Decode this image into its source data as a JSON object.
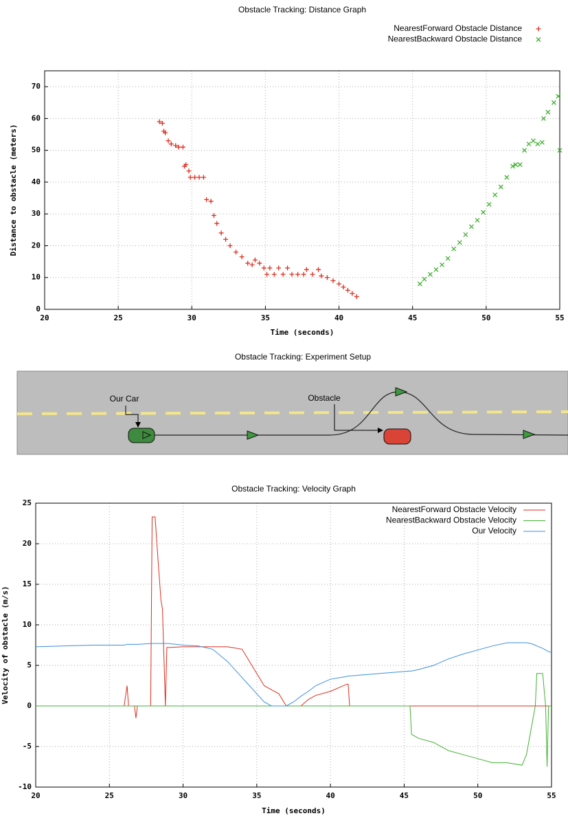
{
  "chart_data": [
    {
      "type": "scatter",
      "title": "Obstacle Tracking: Distance Graph",
      "x_label": "Time (seconds)",
      "y_label": "Distance to obstacle (meters)",
      "xlim": [
        20,
        55
      ],
      "ylim": [
        0,
        75
      ],
      "xticks": [
        20,
        25,
        30,
        35,
        40,
        45,
        50,
        55
      ],
      "yticks": [
        0,
        10,
        20,
        30,
        40,
        50,
        60,
        70
      ],
      "grid": true,
      "legend": "top-right",
      "series": [
        {
          "name": "NearestForward Obstacle Distance",
          "color": "#dd2c1c",
          "marker": "plus",
          "x": [
            27.8,
            28.0,
            28.1,
            28.2,
            28.4,
            28.6,
            28.9,
            29.1,
            29.4,
            29.5,
            29.6,
            29.8,
            29.9,
            30.2,
            30.5,
            30.8,
            31.0,
            31.3,
            31.5,
            31.7,
            32.0,
            32.3,
            32.6,
            33.0,
            33.4,
            33.8,
            34.1,
            34.3,
            34.6,
            34.9,
            35.1,
            35.3,
            35.6,
            35.9,
            36.2,
            36.5,
            36.8,
            37.2,
            37.6,
            37.8,
            38.2,
            38.6,
            38.8,
            39.2,
            39.6,
            40.0,
            40.3,
            40.6,
            40.9,
            41.2
          ],
          "values": [
            59,
            58.5,
            56,
            55.5,
            53,
            52,
            51.5,
            51,
            51,
            45,
            45.5,
            43.5,
            41.5,
            41.5,
            41.5,
            41.5,
            34.5,
            34,
            29.5,
            27,
            24,
            22,
            20,
            18,
            16.5,
            14.5,
            14,
            15.5,
            14.5,
            13,
            11,
            13,
            11,
            13,
            11,
            13,
            11,
            11,
            11,
            12.5,
            11,
            12.5,
            10.5,
            10,
            9,
            8,
            7,
            6,
            5,
            4
          ]
        },
        {
          "name": "NearestBackward Obstacle Distance",
          "color": "#40b030",
          "marker": "cross",
          "x": [
            45.5,
            45.8,
            46.2,
            46.6,
            47.0,
            47.4,
            47.8,
            48.2,
            48.6,
            49.0,
            49.4,
            49.8,
            50.2,
            50.6,
            51.0,
            51.4,
            51.8,
            52.0,
            52.3,
            52.6,
            52.9,
            53.2,
            53.5,
            53.8,
            53.9,
            54.2,
            54.6,
            54.9,
            55.0
          ],
          "values": [
            8,
            9.5,
            11,
            12.5,
            14,
            16,
            19,
            21,
            23.5,
            26,
            28,
            30.5,
            33,
            36,
            38.5,
            41.5,
            45,
            45.5,
            45.5,
            50,
            52,
            53,
            52,
            52.5,
            60,
            62,
            65,
            67,
            50
          ]
        }
      ]
    },
    {
      "type": "line",
      "title": "Obstacle Tracking: Velocity Graph",
      "x_label": "Time (seconds)",
      "y_label": "Velocity of obstacle (m/s)",
      "xlim": [
        20,
        55
      ],
      "ylim": [
        -10,
        25
      ],
      "xticks": [
        20,
        25,
        30,
        35,
        40,
        45,
        50,
        55
      ],
      "yticks": [
        -10,
        -5,
        0,
        5,
        10,
        15,
        20,
        25
      ],
      "grid": true,
      "legend": "top-right",
      "x": [
        20,
        22,
        24,
        26,
        26.2,
        26.3,
        26.4,
        26.7,
        26.8,
        26.9,
        27.8,
        27.9,
        28.1,
        28.3,
        28.5,
        28.6,
        28.8,
        28.9,
        29.0,
        30,
        31,
        32,
        33,
        34,
        34.5,
        35,
        35.5,
        36,
        36.5,
        37,
        37.5,
        38,
        38.5,
        39,
        40,
        41,
        41.2,
        41.3,
        42,
        44,
        45.4,
        45.5,
        46,
        47,
        48,
        49,
        50,
        51,
        52,
        53,
        53.3,
        53.6,
        53.9,
        54.0,
        54.4,
        54.6,
        54.7,
        54.8,
        55
      ],
      "series": [
        {
          "name": "NearestForward Obstacle Velocity",
          "color": "#dd2c1c",
          "values": [
            0,
            0,
            0,
            0,
            2.5,
            0,
            0,
            0,
            -1.5,
            0,
            0,
            23.3,
            23.3,
            18,
            13,
            12,
            0,
            7.2,
            7.2,
            7.3,
            7.3,
            7.3,
            7.3,
            7,
            5.5,
            4,
            2.5,
            2,
            1.5,
            0,
            0,
            0,
            0.8,
            1.3,
            1.8,
            2.6,
            2.7,
            0,
            0,
            0,
            0,
            0,
            0,
            0,
            0,
            0,
            0,
            0,
            0,
            0,
            0,
            0,
            0,
            0,
            0,
            0,
            0,
            0,
            0
          ]
        },
        {
          "name": "NearestBackward Obstacle Velocity",
          "color": "#40b030",
          "values": [
            0,
            0,
            0,
            0,
            0,
            0,
            0,
            0,
            0,
            0,
            0,
            0,
            0,
            0,
            0,
            0,
            0,
            0,
            0,
            0,
            0,
            0,
            0,
            0,
            0,
            0,
            0,
            0,
            0,
            0,
            0,
            0,
            0,
            0,
            0,
            0,
            0,
            0,
            0,
            0,
            0,
            -3.5,
            -4,
            -4.5,
            -5.5,
            -6,
            -6.5,
            -7,
            -7,
            -7.3,
            -6,
            -3,
            0,
            4,
            4,
            0,
            -7.5,
            0,
            0
          ]
        },
        {
          "name": "Our Velocity",
          "color": "#3a8fe0",
          "values": [
            7.3,
            7.4,
            7.5,
            7.5,
            7.6,
            7.6,
            7.6,
            7.6,
            7.6,
            7.6,
            7.7,
            7.7,
            7.7,
            7.7,
            7.7,
            7.7,
            7.7,
            7.7,
            7.7,
            7.5,
            7.4,
            7,
            5.5,
            3.5,
            2.5,
            1.5,
            0.5,
            0,
            0,
            0,
            0.5,
            1.2,
            1.8,
            2.5,
            3.3,
            3.6,
            3.7,
            3.7,
            3.8,
            4.1,
            4.3,
            4.3,
            4.5,
            5,
            5.8,
            6.4,
            6.9,
            7.4,
            7.8,
            7.8,
            7.8,
            7.7,
            7.5,
            7.4,
            7.1,
            6.9,
            6.8,
            6.7,
            6.6
          ]
        }
      ]
    }
  ],
  "diagram": {
    "title": "Obstacle Tracking: Experiment Setup",
    "our_car_label": "Our Car",
    "obstacle_label": "Obstacle"
  }
}
